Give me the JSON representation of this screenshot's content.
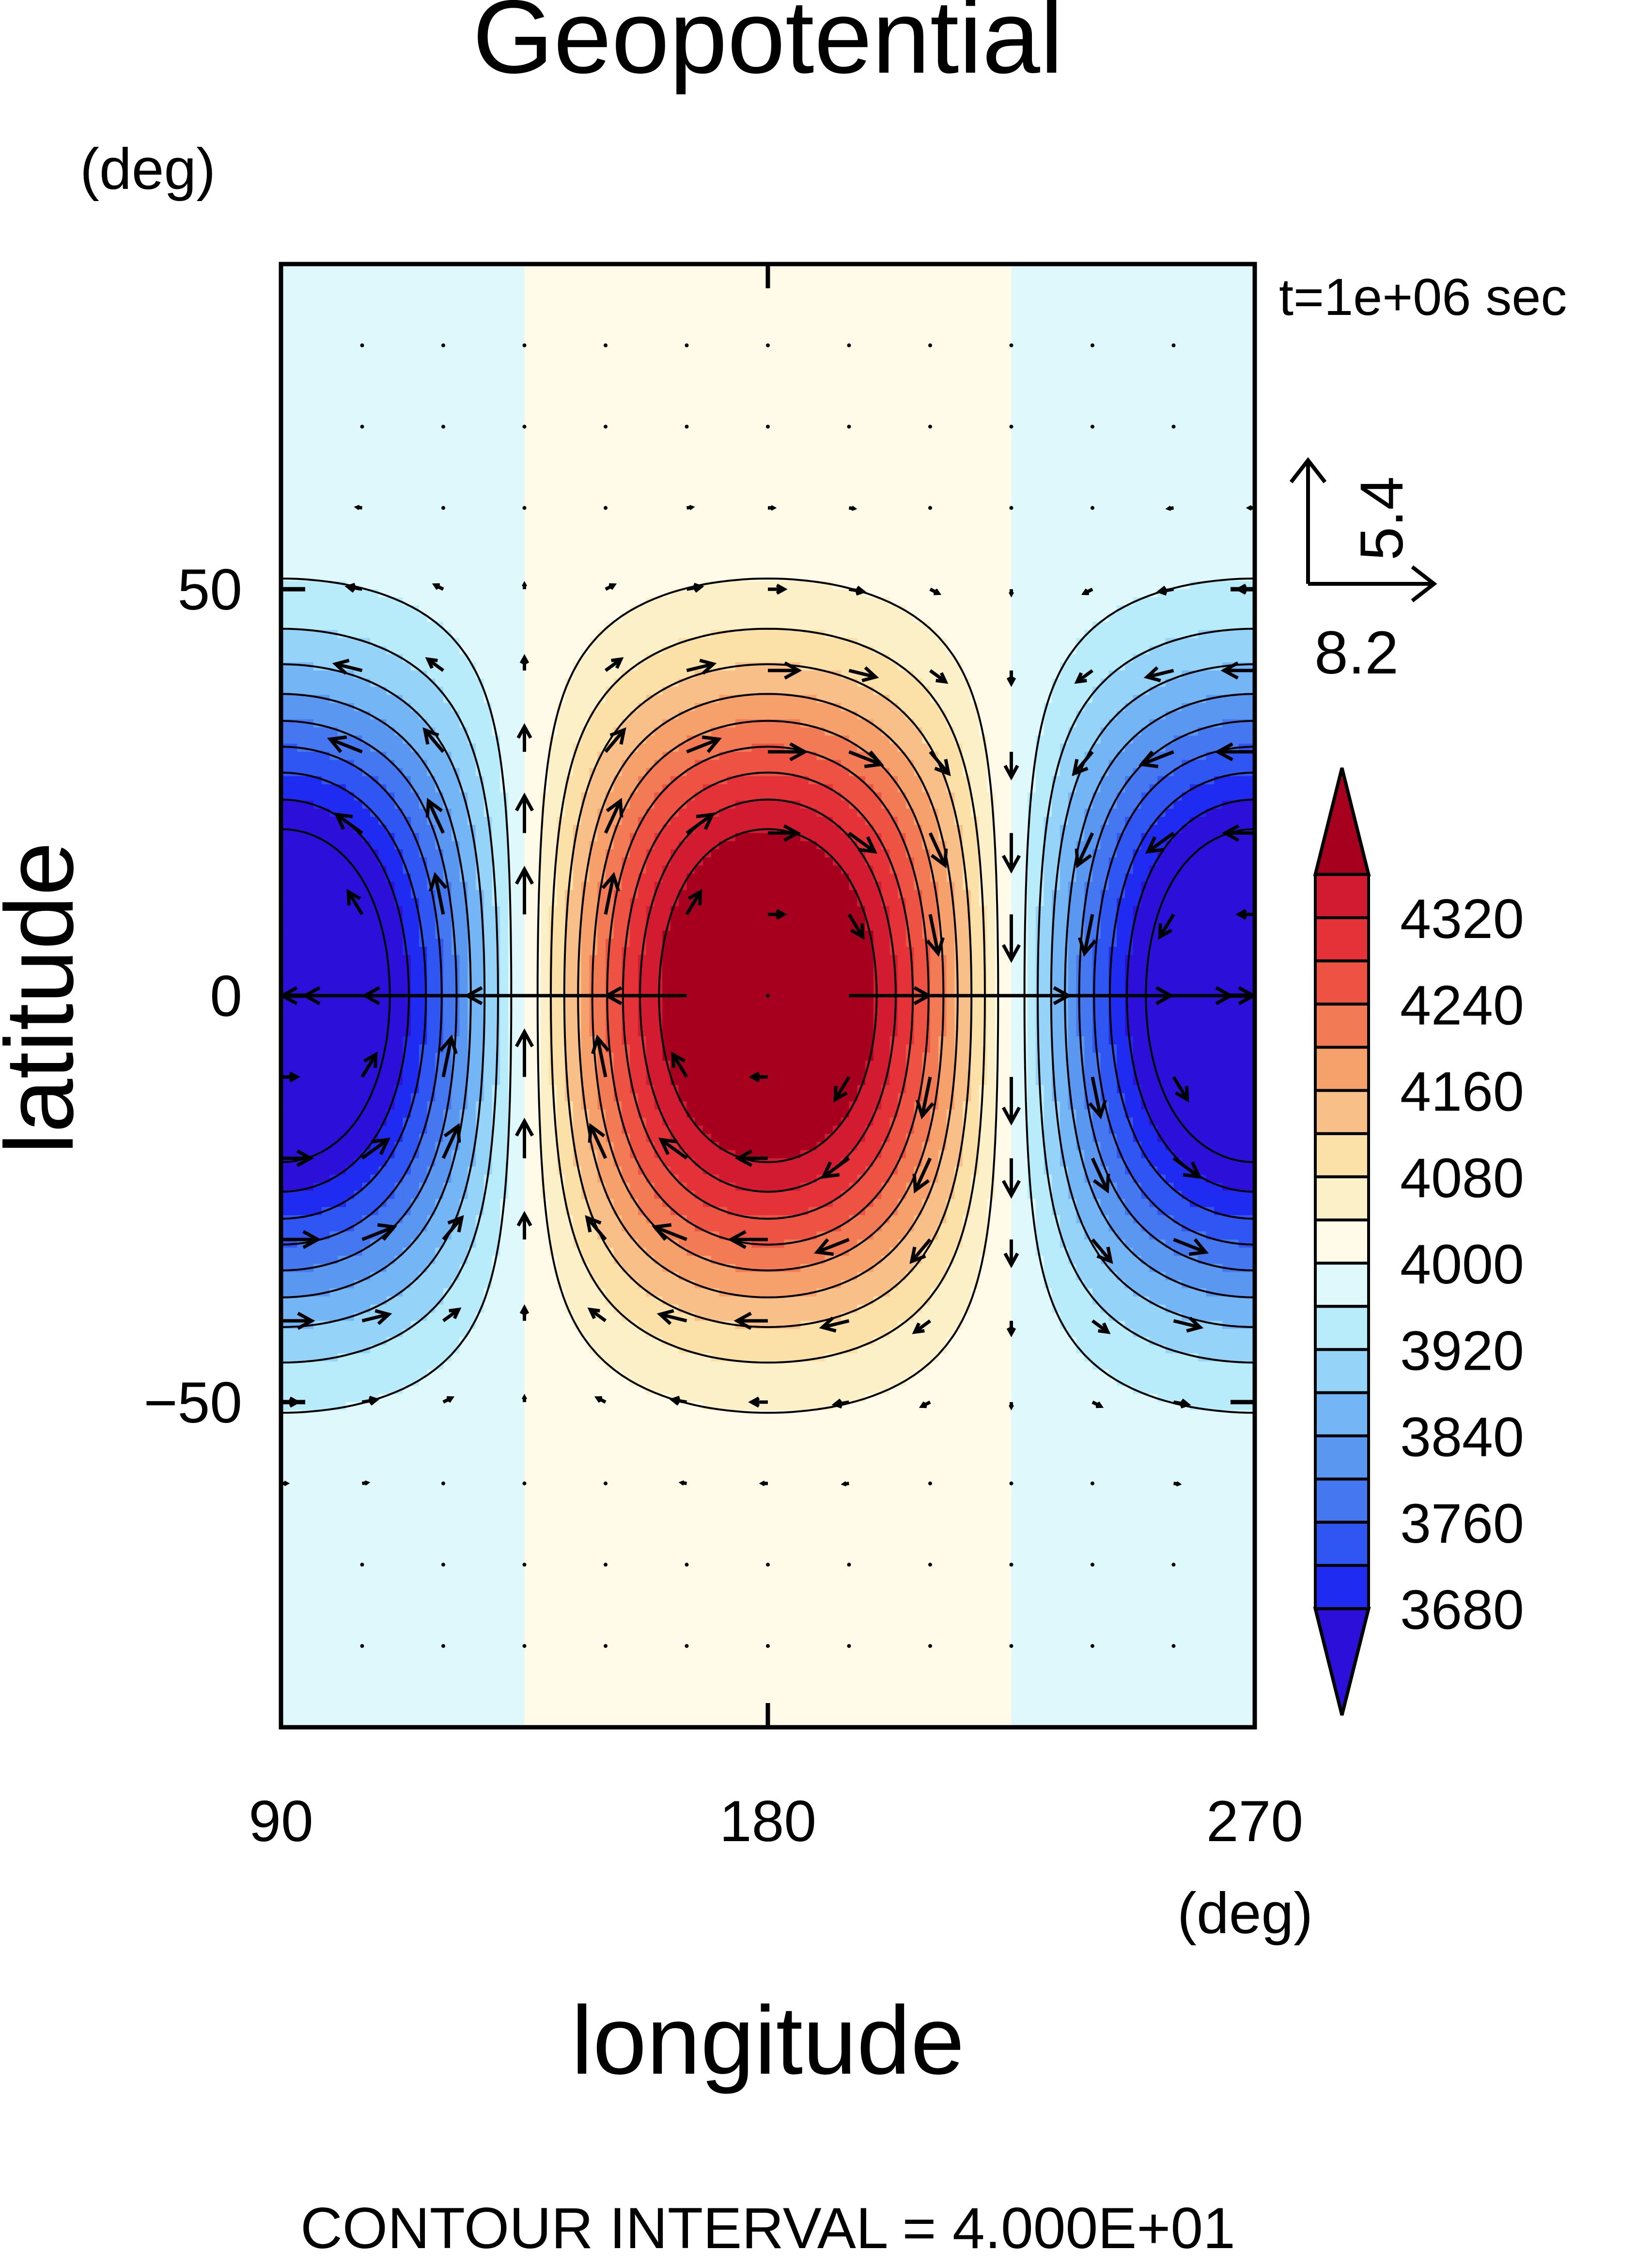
{
  "chart_data": {
    "type": "heatmap",
    "title": "Geopotential",
    "xlabel": "longitude",
    "ylabel": "latitude",
    "x_units": "(deg)",
    "y_units": "(deg)",
    "time_label": "t=1e+06 sec",
    "footer": "CONTOUR INTERVAL = 4.000E+01",
    "xlim": [
      90,
      270
    ],
    "ylim": [
      -90,
      90
    ],
    "x_ticks": [
      90,
      180,
      270
    ],
    "x_tick_labels": [
      "90",
      "180",
      "270"
    ],
    "y_ticks": [
      50,
      0,
      -50
    ],
    "y_tick_labels": [
      "50",
      "0",
      "−50"
    ],
    "vector_reference": {
      "x_value": "8.2",
      "y_value": "5.4"
    },
    "field": {
      "description_free": true,
      "mean": 4000,
      "amplitude": 380,
      "lon_center": 180,
      "lon_period": 180,
      "lat_structure": [
        {
          "lat": 0,
          "weight": 0.8,
          "spread": 22
        },
        {
          "lat": 22,
          "weight": 0.6,
          "spread": 22
        },
        {
          "lat": -22,
          "weight": 0.6,
          "spread": 22
        }
      ],
      "contour_interval": 40
    },
    "colorbar": {
      "min": 3640,
      "max": 4360,
      "step": 40,
      "labels": [
        "4320",
        "4240",
        "4160",
        "4080",
        "4000",
        "3920",
        "3840",
        "3760",
        "3680"
      ],
      "label_values": [
        4320,
        4240,
        4160,
        4080,
        4000,
        3920,
        3840,
        3760,
        3680
      ],
      "colors": [
        "#2c0fd8",
        "#1f2bf0",
        "#2f55f2",
        "#4577f0",
        "#5a97f0",
        "#74b6f5",
        "#96d3f8",
        "#b8ecfb",
        "#dff8fb",
        "#fffbe8",
        "#fcf0c8",
        "#fbe0a8",
        "#f8c088",
        "#f6a06c",
        "#f27a55",
        "#ee5242",
        "#e43238",
        "#d21a30",
        "#a6001e"
      ]
    }
  }
}
